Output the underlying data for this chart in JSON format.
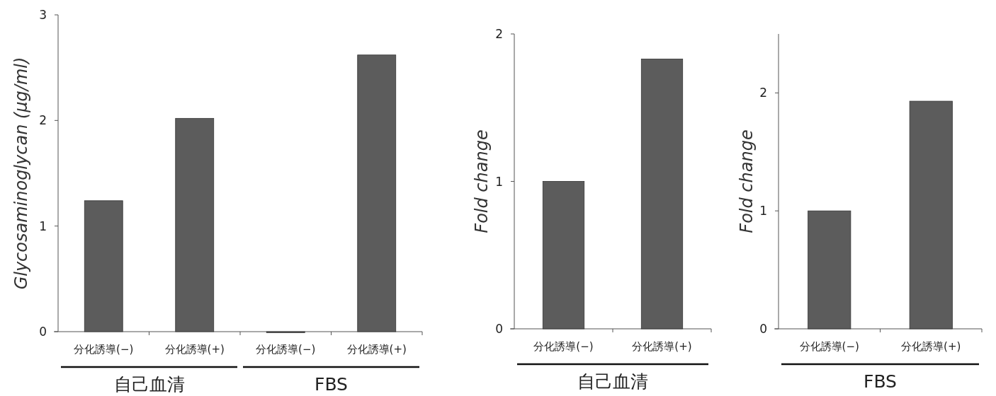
{
  "chart_data": [
    {
      "type": "bar",
      "ylabel": "Glycosaminoglycan (μg/ml)",
      "categories": [
        "分化誘導(−)",
        "分化誘導(+)",
        "分化誘導(−)",
        "分化誘導(+)"
      ],
      "values": [
        1.24,
        2.02,
        0,
        2.62
      ],
      "color": "#5c5c5c",
      "ylim": [
        0,
        3
      ],
      "yticks": [
        0,
        1,
        2,
        3
      ],
      "annotations": [
        "自己血清",
        "FBS"
      ]
    },
    {
      "type": "bar",
      "ylabel": "Fold change",
      "categories": [
        "分化誘導(−)",
        "分化誘導(+)"
      ],
      "values": [
        1.0,
        1.83
      ],
      "color": "#5c5c5c",
      "ylim": [
        0,
        2
      ],
      "yticks": [
        0,
        1,
        2
      ],
      "annotations": [
        "自己血清"
      ]
    },
    {
      "type": "bar",
      "ylabel": "Fold change",
      "categories": [
        "分化誘導(−)",
        "分化誘導(+)"
      ],
      "values": [
        1.0,
        1.93
      ],
      "color": "#5c5c5c",
      "ylim": [
        0,
        2.5
      ],
      "yticks": [
        0,
        1,
        2
      ],
      "annotations": [
        "FBS"
      ]
    }
  ]
}
